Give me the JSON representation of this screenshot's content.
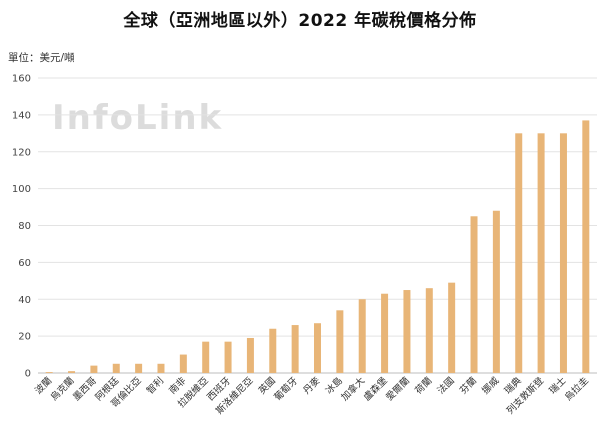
{
  "chart_data": {
    "type": "bar",
    "title": "全球（亞洲地區以外）2022 年碳稅價格分佈",
    "ylabel": "單位：美元/噸",
    "watermark": "InfoLink",
    "ylim": [
      0,
      160
    ],
    "yticks": [
      0,
      20,
      40,
      60,
      80,
      100,
      120,
      140,
      160
    ],
    "grid": true,
    "bar_color": "#e8b577",
    "categories": [
      "波蘭",
      "烏克蘭",
      "墨西哥",
      "阿根廷",
      "哥倫比亞",
      "智利",
      "南非",
      "拉脫維亞",
      "西班牙",
      "斯洛維尼亞",
      "英國",
      "葡萄牙",
      "丹麥",
      "冰島",
      "加拿大",
      "盧森堡",
      "愛爾蘭",
      "荷蘭",
      "法國",
      "芬蘭",
      "挪威",
      "瑞典",
      "列支敦斯登",
      "瑞士",
      "烏拉圭"
    ],
    "values": [
      0.5,
      1,
      4,
      5,
      5,
      5,
      10,
      17,
      17,
      19,
      24,
      26,
      27,
      34,
      40,
      43,
      45,
      46,
      49,
      85,
      88,
      130,
      130,
      130,
      137
    ]
  }
}
